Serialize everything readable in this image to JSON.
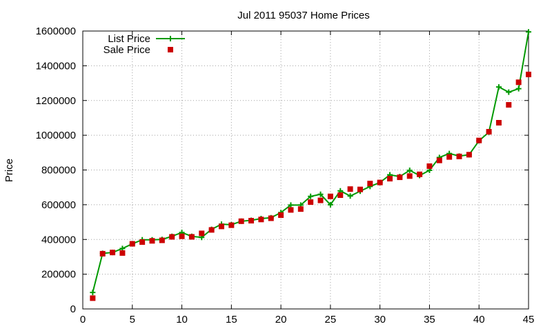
{
  "chart_data": {
    "type": "line",
    "title": "Jul 2011 95037 Home Prices",
    "xlabel": "",
    "ylabel": "Price",
    "xlim": [
      0,
      45
    ],
    "ylim": [
      0,
      1600000
    ],
    "x_ticks": [
      0,
      5,
      10,
      15,
      20,
      25,
      30,
      35,
      40,
      45
    ],
    "y_ticks": [
      0,
      200000,
      400000,
      600000,
      800000,
      1000000,
      1200000,
      1400000,
      1600000
    ],
    "grid": true,
    "legend_position": "top-left",
    "x": [
      1,
      2,
      3,
      4,
      5,
      6,
      7,
      8,
      9,
      10,
      11,
      12,
      13,
      14,
      15,
      16,
      17,
      18,
      19,
      20,
      21,
      22,
      23,
      24,
      25,
      26,
      27,
      28,
      29,
      30,
      31,
      32,
      33,
      34,
      35,
      36,
      37,
      38,
      39,
      40,
      41,
      42,
      43,
      44,
      45
    ],
    "series": [
      {
        "name": "List Price",
        "style": "line-points",
        "color": "#009900",
        "values": [
          95000,
          320000,
          325000,
          348000,
          375000,
          398000,
          398000,
          400000,
          418000,
          440000,
          418000,
          412000,
          458000,
          488000,
          485000,
          505000,
          510000,
          520000,
          525000,
          555000,
          598000,
          598000,
          648000,
          660000,
          600000,
          680000,
          650000,
          678000,
          705000,
          728000,
          772000,
          762000,
          798000,
          768000,
          798000,
          872000,
          895000,
          880000,
          888000,
          968000,
          1018000,
          1278000,
          1248000,
          1268000,
          1595000
        ]
      },
      {
        "name": "Sale Price",
        "style": "points",
        "color": "#cc0000",
        "values": [
          62000,
          318000,
          325000,
          322000,
          375000,
          385000,
          392000,
          395000,
          415000,
          418000,
          415000,
          435000,
          455000,
          475000,
          482000,
          505000,
          508000,
          515000,
          522000,
          540000,
          570000,
          575000,
          615000,
          625000,
          648000,
          655000,
          690000,
          688000,
          722000,
          728000,
          750000,
          758000,
          765000,
          775000,
          822000,
          855000,
          875000,
          878000,
          888000,
          970000,
          1020000,
          1072000,
          1175000,
          1305000,
          1350000
        ]
      }
    ]
  }
}
